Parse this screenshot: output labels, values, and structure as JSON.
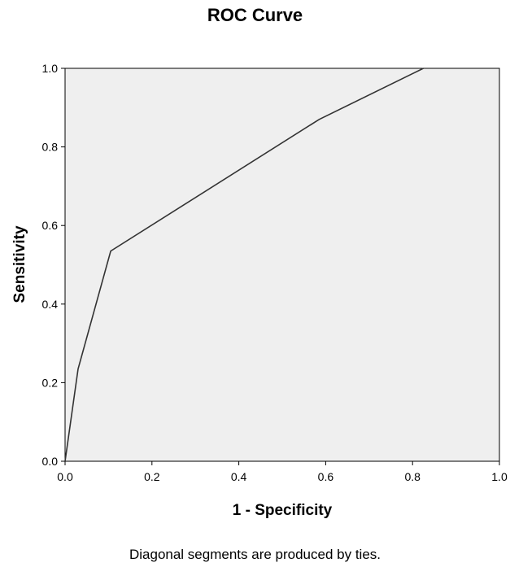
{
  "chart_data": {
    "type": "line",
    "title": "ROC Curve",
    "xlabel": "1 - Specificity",
    "ylabel": "Sensitivity",
    "xlim": [
      0.0,
      1.0
    ],
    "ylim": [
      0.0,
      1.0
    ],
    "x_ticks": [
      "0.0",
      "0.2",
      "0.4",
      "0.6",
      "0.8",
      "1.0"
    ],
    "y_ticks": [
      "0.0",
      "0.2",
      "0.4",
      "0.6",
      "0.8",
      "1.0"
    ],
    "grid": false,
    "background_color": "#efefef",
    "line_color": "#333333",
    "series": [
      {
        "x": [
          0.0,
          0.03,
          0.105,
          0.585,
          0.825
        ],
        "y": [
          0.0,
          0.235,
          0.535,
          0.87,
          1.0
        ]
      }
    ],
    "footnote": "Diagonal segments are produced by ties."
  }
}
